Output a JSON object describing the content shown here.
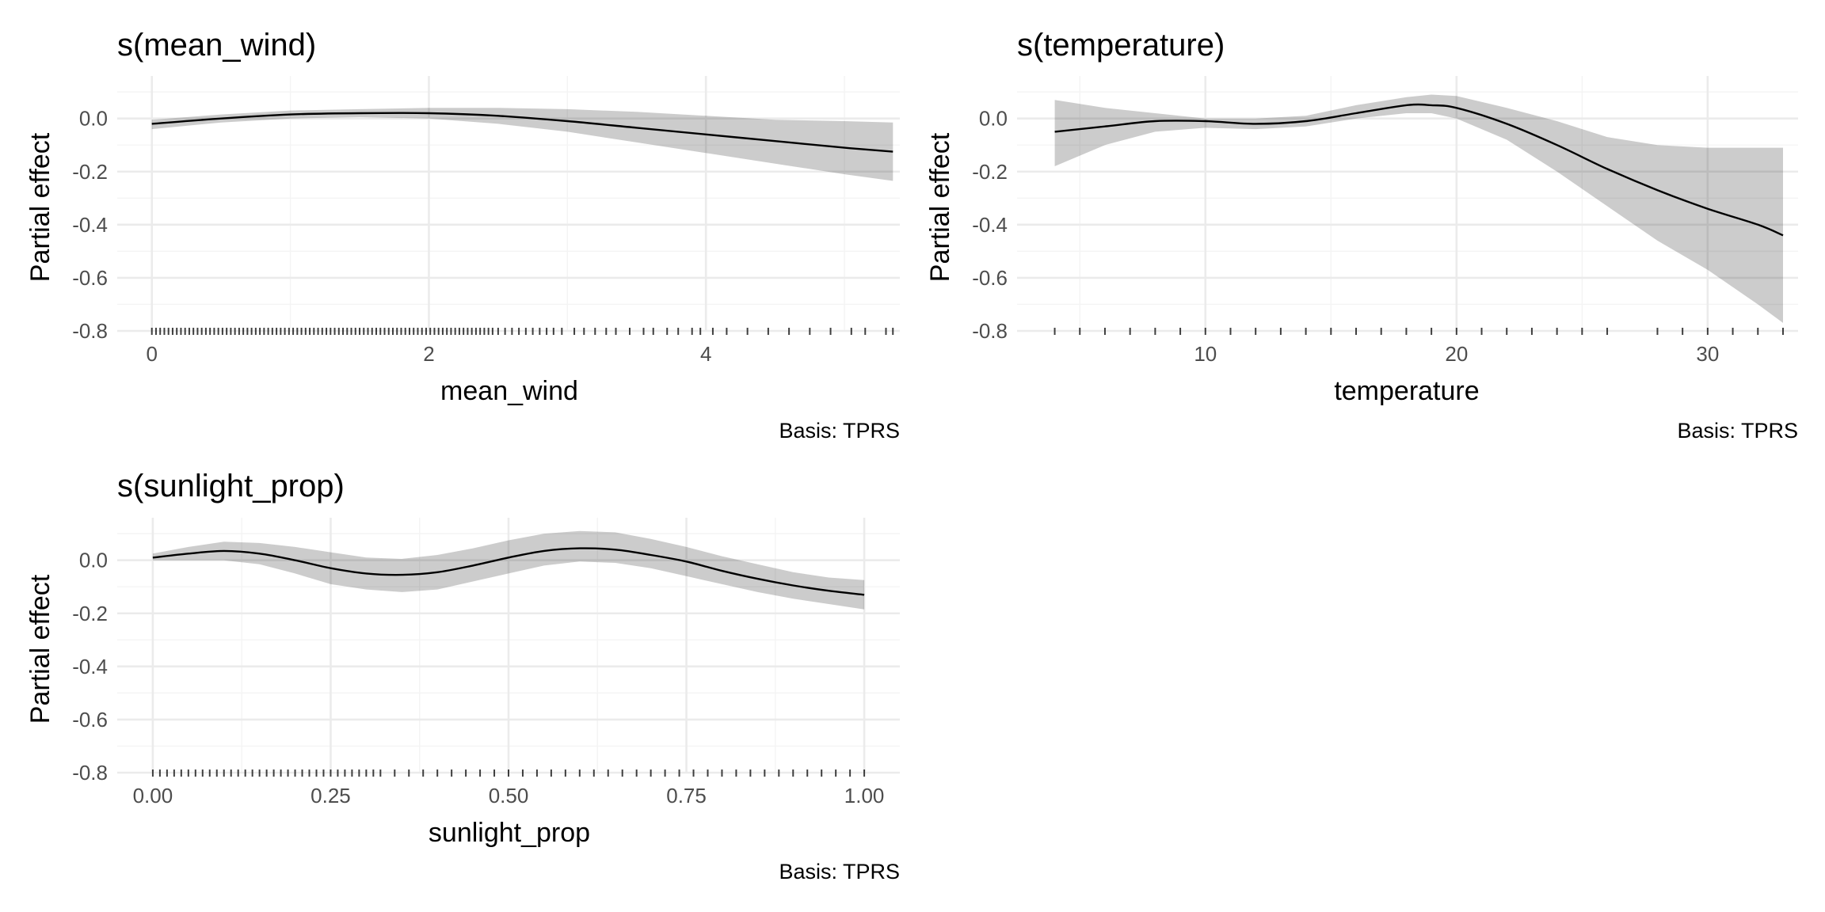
{
  "chart_data": [
    {
      "type": "line",
      "title": "s(mean_wind)",
      "xlabel": "mean_wind",
      "ylabel": "Partial effect",
      "caption": "Basis: TPRS",
      "xlim": [
        -0.25,
        5.4
      ],
      "ylim": [
        -0.8,
        0.16
      ],
      "x_ticks": [
        0,
        2,
        4
      ],
      "x_tick_labels": [
        "0",
        "2",
        "4"
      ],
      "y_ticks": [
        0.0,
        -0.2,
        -0.4,
        -0.6,
        -0.8
      ],
      "y_tick_labels": [
        "0.0",
        "-0.2",
        "-0.4",
        "-0.6",
        "-0.8"
      ],
      "grid": true,
      "series": [
        {
          "x": [
            0,
            0.5,
            1.0,
            1.5,
            2.0,
            2.5,
            3.0,
            3.5,
            4.0,
            4.5,
            5.0,
            5.35
          ],
          "values": [
            -0.02,
            0.0,
            0.015,
            0.02,
            0.02,
            0.01,
            -0.01,
            -0.035,
            -0.06,
            -0.085,
            -0.11,
            -0.125
          ],
          "lower": [
            -0.04,
            -0.015,
            0.0,
            0.005,
            0.0,
            -0.02,
            -0.05,
            -0.09,
            -0.13,
            -0.17,
            -0.21,
            -0.235
          ],
          "upper": [
            -0.005,
            0.015,
            0.03,
            0.035,
            0.04,
            0.04,
            0.035,
            0.025,
            0.01,
            -0.005,
            -0.01,
            -0.015
          ]
        }
      ],
      "rug": [
        0.0,
        0.03,
        0.06,
        0.09,
        0.12,
        0.15,
        0.18,
        0.21,
        0.24,
        0.27,
        0.3,
        0.33,
        0.36,
        0.39,
        0.42,
        0.45,
        0.48,
        0.51,
        0.54,
        0.57,
        0.6,
        0.63,
        0.66,
        0.69,
        0.72,
        0.75,
        0.78,
        0.81,
        0.84,
        0.87,
        0.9,
        0.93,
        0.96,
        0.99,
        1.02,
        1.05,
        1.08,
        1.11,
        1.14,
        1.17,
        1.2,
        1.23,
        1.26,
        1.29,
        1.32,
        1.35,
        1.38,
        1.41,
        1.44,
        1.47,
        1.5,
        1.53,
        1.56,
        1.59,
        1.62,
        1.65,
        1.68,
        1.71,
        1.74,
        1.77,
        1.8,
        1.83,
        1.86,
        1.89,
        1.92,
        1.95,
        1.98,
        2.01,
        2.04,
        2.07,
        2.1,
        2.13,
        2.16,
        2.19,
        2.22,
        2.25,
        2.28,
        2.31,
        2.34,
        2.37,
        2.4,
        2.43,
        2.46,
        2.5,
        2.55,
        2.6,
        2.65,
        2.7,
        2.75,
        2.8,
        2.85,
        2.9,
        2.96,
        3.05,
        3.12,
        3.2,
        3.28,
        3.35,
        3.45,
        3.55,
        3.62,
        3.72,
        3.8,
        3.9,
        3.96,
        4.05,
        4.15,
        4.3,
        4.45,
        4.6,
        4.75,
        4.9,
        5.05,
        5.15,
        5.3,
        5.35
      ]
    },
    {
      "type": "line",
      "title": "s(temperature)",
      "xlabel": "temperature",
      "ylabel": "Partial effect",
      "caption": "Basis: TPRS",
      "xlim": [
        2.5,
        33.6
      ],
      "ylim": [
        -0.8,
        0.16
      ],
      "x_ticks": [
        10,
        20,
        30
      ],
      "x_tick_labels": [
        "10",
        "20",
        "30"
      ],
      "y_ticks": [
        0.0,
        -0.2,
        -0.4,
        -0.6,
        -0.8
      ],
      "y_tick_labels": [
        "0.0",
        "-0.2",
        "-0.4",
        "-0.6",
        "-0.8"
      ],
      "grid": true,
      "series": [
        {
          "x": [
            4,
            6,
            8,
            10,
            12,
            14,
            16,
            18,
            19,
            20,
            22,
            24,
            26,
            28,
            30,
            32,
            33
          ],
          "values": [
            -0.05,
            -0.03,
            -0.01,
            -0.01,
            -0.02,
            -0.01,
            0.02,
            0.05,
            0.05,
            0.04,
            -0.02,
            -0.1,
            -0.19,
            -0.27,
            -0.34,
            -0.4,
            -0.44
          ],
          "lower": [
            -0.18,
            -0.1,
            -0.05,
            -0.035,
            -0.04,
            -0.03,
            0.0,
            0.02,
            0.02,
            0.0,
            -0.08,
            -0.2,
            -0.33,
            -0.46,
            -0.57,
            -0.7,
            -0.77
          ],
          "upper": [
            0.07,
            0.04,
            0.02,
            0.0,
            0.0,
            0.01,
            0.05,
            0.08,
            0.09,
            0.085,
            0.04,
            -0.01,
            -0.07,
            -0.1,
            -0.11,
            -0.11,
            -0.11
          ]
        }
      ],
      "rug": [
        4,
        5,
        6,
        7,
        8,
        9,
        10,
        11,
        12,
        13,
        14,
        15,
        16,
        17,
        18,
        19,
        20,
        21,
        22,
        23,
        24,
        25,
        26,
        28,
        29,
        30,
        31,
        32,
        33
      ]
    },
    {
      "type": "line",
      "title": "s(sunlight_prop)",
      "xlabel": "sunlight_prop",
      "ylabel": "Partial effect",
      "caption": "Basis: TPRS",
      "xlim": [
        -0.05,
        1.05
      ],
      "ylim": [
        -0.8,
        0.16
      ],
      "x_ticks": [
        0.0,
        0.25,
        0.5,
        0.75,
        1.0
      ],
      "x_tick_labels": [
        "0.00",
        "0.25",
        "0.50",
        "0.75",
        "1.00"
      ],
      "y_ticks": [
        0.0,
        -0.2,
        -0.4,
        -0.6,
        -0.8
      ],
      "y_tick_labels": [
        "0.0",
        "-0.2",
        "-0.4",
        "-0.6",
        "-0.8"
      ],
      "grid": true,
      "series": [
        {
          "x": [
            0,
            0.05,
            0.1,
            0.15,
            0.2,
            0.25,
            0.3,
            0.35,
            0.4,
            0.45,
            0.5,
            0.55,
            0.6,
            0.65,
            0.7,
            0.75,
            0.8,
            0.85,
            0.9,
            0.95,
            1.0
          ],
          "values": [
            0.01,
            0.025,
            0.035,
            0.025,
            0.0,
            -0.03,
            -0.05,
            -0.055,
            -0.045,
            -0.02,
            0.01,
            0.035,
            0.045,
            0.04,
            0.02,
            -0.005,
            -0.04,
            -0.07,
            -0.095,
            -0.115,
            -0.13
          ],
          "lower": [
            0.0,
            0.0,
            0.0,
            -0.015,
            -0.05,
            -0.09,
            -0.11,
            -0.12,
            -0.11,
            -0.08,
            -0.05,
            -0.02,
            -0.005,
            -0.01,
            -0.03,
            -0.06,
            -0.09,
            -0.12,
            -0.145,
            -0.165,
            -0.185
          ],
          "upper": [
            0.025,
            0.05,
            0.07,
            0.065,
            0.05,
            0.03,
            0.01,
            0.005,
            0.02,
            0.045,
            0.075,
            0.1,
            0.11,
            0.105,
            0.08,
            0.05,
            0.015,
            -0.015,
            -0.045,
            -0.065,
            -0.075
          ]
        }
      ],
      "rug": [
        0.0,
        0.01,
        0.02,
        0.03,
        0.04,
        0.05,
        0.06,
        0.07,
        0.08,
        0.09,
        0.1,
        0.11,
        0.12,
        0.13,
        0.14,
        0.15,
        0.16,
        0.17,
        0.18,
        0.19,
        0.2,
        0.21,
        0.22,
        0.23,
        0.24,
        0.25,
        0.26,
        0.27,
        0.28,
        0.29,
        0.3,
        0.31,
        0.32,
        0.34,
        0.36,
        0.38,
        0.4,
        0.42,
        0.44,
        0.46,
        0.48,
        0.5,
        0.52,
        0.54,
        0.56,
        0.58,
        0.6,
        0.62,
        0.64,
        0.66,
        0.68,
        0.7,
        0.72,
        0.74,
        0.76,
        0.78,
        0.8,
        0.82,
        0.84,
        0.86,
        0.88,
        0.9,
        0.92,
        0.94,
        0.96,
        0.98,
        1.0
      ]
    }
  ]
}
